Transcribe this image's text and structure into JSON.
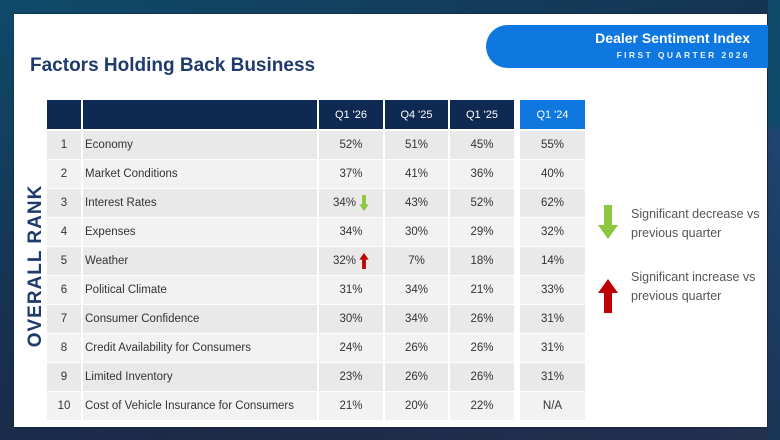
{
  "header": {
    "title": "Factors Holding Back Business",
    "badge_title": "Dealer Sentiment Index",
    "badge_subtitle": "FIRST QUARTER 2026"
  },
  "side_label": "OVERALL RANK",
  "colors": {
    "navy": "#0f2a52",
    "accent_blue": "#0e78e0",
    "title_blue": "#1f3a6b",
    "decrease_green": "#8dc63f",
    "increase_red": "#c00000"
  },
  "table": {
    "columns": [
      "",
      "",
      "Q1 '26",
      "Q4 '25",
      "Q1 '25",
      "Q1 '24"
    ],
    "rows": [
      {
        "rank": "1",
        "factor": "Economy",
        "q1_26": "52%",
        "q4_25": "51%",
        "q1_25": "45%",
        "q1_24": "55%",
        "flag": ""
      },
      {
        "rank": "2",
        "factor": "Market Conditions",
        "q1_26": "37%",
        "q4_25": "41%",
        "q1_25": "36%",
        "q1_24": "40%",
        "flag": ""
      },
      {
        "rank": "3",
        "factor": "Interest Rates",
        "q1_26": "34%",
        "q4_25": "43%",
        "q1_25": "52%",
        "q1_24": "62%",
        "flag": "decrease"
      },
      {
        "rank": "4",
        "factor": "Expenses",
        "q1_26": "34%",
        "q4_25": "30%",
        "q1_25": "29%",
        "q1_24": "32%",
        "flag": ""
      },
      {
        "rank": "5",
        "factor": "Weather",
        "q1_26": "32%",
        "q4_25": "7%",
        "q1_25": "18%",
        "q1_24": "14%",
        "flag": "increase"
      },
      {
        "rank": "6",
        "factor": "Political Climate",
        "q1_26": "31%",
        "q4_25": "34%",
        "q1_25": "21%",
        "q1_24": "33%",
        "flag": ""
      },
      {
        "rank": "7",
        "factor": "Consumer Confidence",
        "q1_26": "30%",
        "q4_25": "34%",
        "q1_25": "26%",
        "q1_24": "31%",
        "flag": ""
      },
      {
        "rank": "8",
        "factor": "Credit Availability for Consumers",
        "q1_26": "24%",
        "q4_25": "26%",
        "q1_25": "26%",
        "q1_24": "31%",
        "flag": ""
      },
      {
        "rank": "9",
        "factor": "Limited Inventory",
        "q1_26": "23%",
        "q4_25": "26%",
        "q1_25": "26%",
        "q1_24": "31%",
        "flag": ""
      },
      {
        "rank": "10",
        "factor": "Cost of Vehicle Insurance for Consumers",
        "q1_26": "21%",
        "q4_25": "20%",
        "q1_25": "22%",
        "q1_24": "N/A",
        "flag": ""
      }
    ]
  },
  "legend": [
    {
      "icon": "arrow-down-icon",
      "text": "Significant decrease vs previous quarter"
    },
    {
      "icon": "arrow-up-icon",
      "text": "Significant increase vs previous quarter"
    }
  ]
}
